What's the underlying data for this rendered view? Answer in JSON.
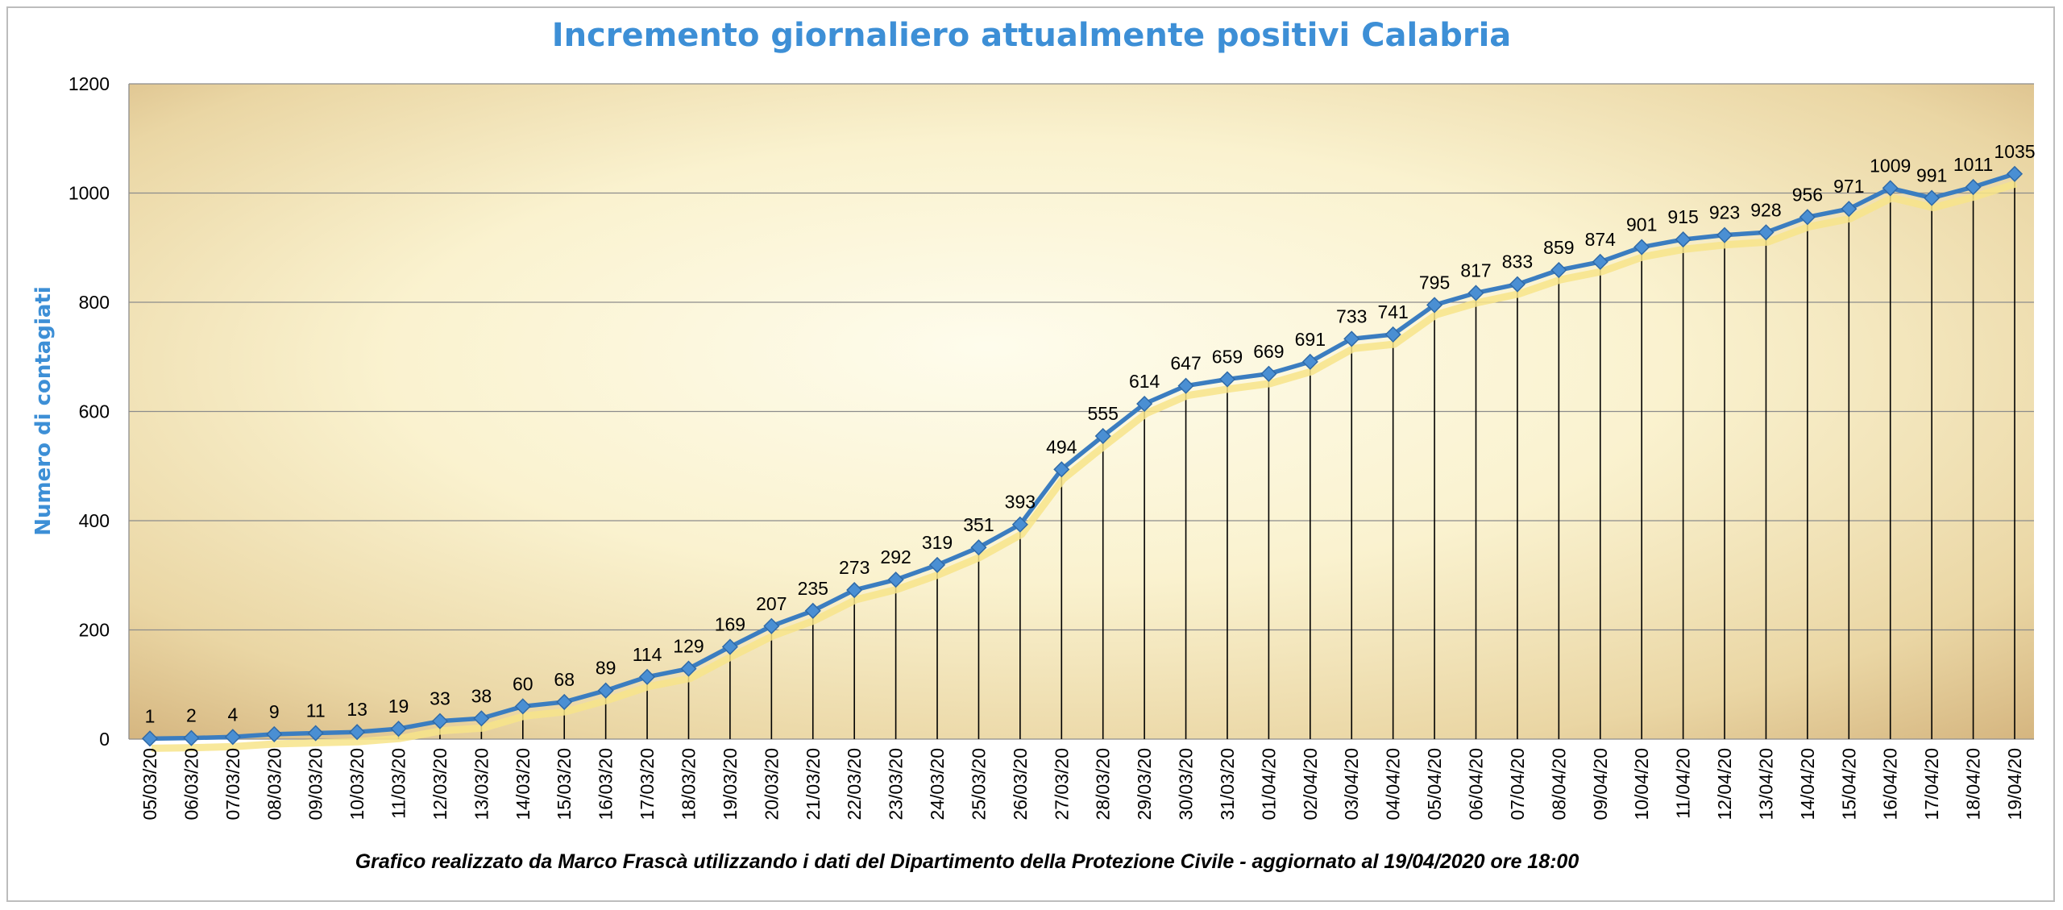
{
  "colors": {
    "title": "#3d8fd6",
    "series_line": "#3b7dc0",
    "marker": "#4a8fd3",
    "shadow_line": "#f7e48a",
    "drop_lines": "#000000",
    "grid": "#8c8c8c",
    "plot_bg_light": "#fdfbe6",
    "plot_bg_dark": "#d9bc88"
  },
  "chart_data": {
    "type": "line",
    "title": "Incremento giornaliero attualmente positivi Calabria",
    "ylabel": "Numero di contagiati",
    "xlabel": "",
    "ylim": [
      0,
      1200
    ],
    "yticks": [
      0,
      200,
      400,
      600,
      800,
      1000,
      1200
    ],
    "grid": true,
    "legend": "none",
    "data_labels": true,
    "drop_lines": true,
    "categories": [
      "05/03/20",
      "06/03/20",
      "07/03/20",
      "08/03/20",
      "09/03/20",
      "10/03/20",
      "11/03/20",
      "12/03/20",
      "13/03/20",
      "14/03/20",
      "15/03/20",
      "16/03/20",
      "17/03/20",
      "18/03/20",
      "19/03/20",
      "20/03/20",
      "21/03/20",
      "22/03/20",
      "23/03/20",
      "24/03/20",
      "25/03/20",
      "26/03/20",
      "27/03/20",
      "28/03/20",
      "29/03/20",
      "30/03/20",
      "31/03/20",
      "01/04/20",
      "02/04/20",
      "03/04/20",
      "04/04/20",
      "05/04/20",
      "06/04/20",
      "07/04/20",
      "08/04/20",
      "09/04/20",
      "10/04/20",
      "11/04/20",
      "12/04/20",
      "13/04/20",
      "14/04/20",
      "15/04/20",
      "16/04/20",
      "17/04/20",
      "18/04/20",
      "19/04/20"
    ],
    "series": [
      {
        "values": [
          1,
          2,
          4,
          9,
          11,
          13,
          19,
          33,
          38,
          60,
          68,
          89,
          114,
          129,
          169,
          207,
          235,
          273,
          292,
          319,
          351,
          393,
          494,
          555,
          614,
          647,
          659,
          669,
          691,
          733,
          741,
          795,
          817,
          833,
          859,
          874,
          901,
          915,
          923,
          928,
          956,
          971,
          1009,
          991,
          1011,
          1035
        ]
      }
    ],
    "footer": "Grafico  realizzato da Marco Frascà  utilizzando i dati del Dipartimento  della Protezione Civile - aggiornato al 19/04/2020 ore 18:00"
  }
}
